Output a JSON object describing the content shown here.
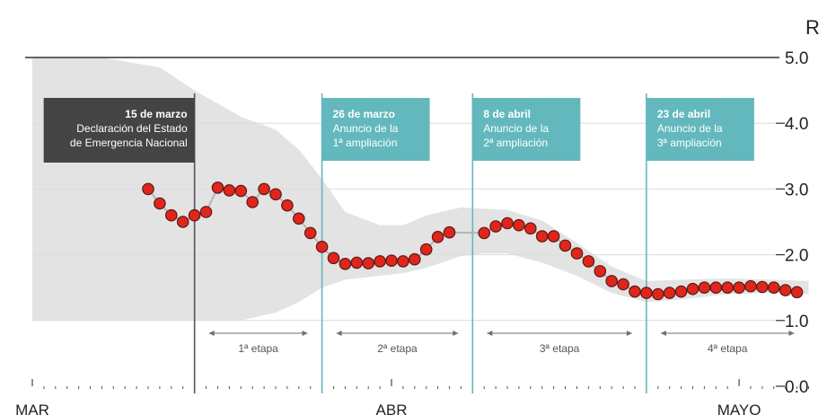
{
  "chart_data": {
    "type": "line",
    "title": "",
    "xlabel": "",
    "ylabel": "R",
    "ylim": [
      0,
      5
    ],
    "yticks": [
      {
        "value": 0,
        "label": "0.0"
      },
      {
        "value": 1,
        "label": "1.0"
      },
      {
        "value": 2,
        "label": "2.0"
      },
      {
        "value": 3,
        "label": "3.0"
      },
      {
        "value": 4,
        "label": "4.0"
      },
      {
        "value": 5,
        "label": "5.0"
      }
    ],
    "x_domain": [
      "2020-03-01",
      "2020-05-04"
    ],
    "months": [
      {
        "label": "MAR",
        "date": "2020-03-01"
      },
      {
        "label": "ABR",
        "date": "2020-04-01"
      },
      {
        "label": "MAYO",
        "date": "2020-05-01"
      }
    ],
    "series": [
      {
        "color": "#e0261c",
        "points": [
          [
            "2020-03-11",
            3.0
          ],
          [
            "2020-03-12",
            2.78
          ],
          [
            "2020-03-13",
            2.6
          ],
          [
            "2020-03-14",
            2.5
          ],
          [
            "2020-03-15",
            2.6
          ],
          [
            "2020-03-16",
            2.65
          ],
          [
            "2020-03-17",
            3.02
          ],
          [
            "2020-03-18",
            2.98
          ],
          [
            "2020-03-19",
            2.97
          ],
          [
            "2020-03-20",
            2.8
          ],
          [
            "2020-03-21",
            3.0
          ],
          [
            "2020-03-22",
            2.92
          ],
          [
            "2020-03-23",
            2.75
          ],
          [
            "2020-03-24",
            2.55
          ],
          [
            "2020-03-25",
            2.33
          ],
          [
            "2020-03-26",
            2.12
          ],
          [
            "2020-03-27",
            1.95
          ],
          [
            "2020-03-28",
            1.86
          ],
          [
            "2020-03-29",
            1.88
          ],
          [
            "2020-03-30",
            1.87
          ],
          [
            "2020-03-31",
            1.9
          ],
          [
            "2020-04-01",
            1.91
          ],
          [
            "2020-04-02",
            1.9
          ],
          [
            "2020-04-03",
            1.93
          ],
          [
            "2020-04-04",
            2.08
          ],
          [
            "2020-04-05",
            2.27
          ],
          [
            "2020-04-06",
            2.34
          ],
          [
            "2020-04-09",
            2.33
          ],
          [
            "2020-04-10",
            2.43
          ],
          [
            "2020-04-11",
            2.48
          ],
          [
            "2020-04-12",
            2.45
          ],
          [
            "2020-04-13",
            2.4
          ],
          [
            "2020-04-14",
            2.28
          ],
          [
            "2020-04-15",
            2.28
          ],
          [
            "2020-04-16",
            2.14
          ],
          [
            "2020-04-17",
            2.02
          ],
          [
            "2020-04-18",
            1.9
          ],
          [
            "2020-04-19",
            1.75
          ],
          [
            "2020-04-20",
            1.6
          ],
          [
            "2020-04-21",
            1.55
          ],
          [
            "2020-04-22",
            1.44
          ],
          [
            "2020-04-23",
            1.42
          ],
          [
            "2020-04-24",
            1.4
          ],
          [
            "2020-04-25",
            1.42
          ],
          [
            "2020-04-26",
            1.44
          ],
          [
            "2020-04-27",
            1.48
          ],
          [
            "2020-04-28",
            1.5
          ],
          [
            "2020-04-29",
            1.5
          ],
          [
            "2020-04-30",
            1.5
          ],
          [
            "2020-05-01",
            1.5
          ],
          [
            "2020-05-02",
            1.52
          ],
          [
            "2020-05-03",
            1.51
          ],
          [
            "2020-05-04",
            1.5
          ],
          [
            "2020-05-05",
            1.46
          ],
          [
            "2020-05-06",
            1.43
          ]
        ]
      }
    ],
    "band": [
      [
        "2020-03-01",
        5.0,
        1.0
      ],
      [
        "2020-03-07",
        5.0,
        1.0
      ],
      [
        "2020-03-12",
        4.85,
        1.0
      ],
      [
        "2020-03-15",
        4.5,
        1.0
      ],
      [
        "2020-03-19",
        4.1,
        1.0
      ],
      [
        "2020-03-22",
        3.9,
        1.12
      ],
      [
        "2020-03-24",
        3.6,
        1.28
      ],
      [
        "2020-03-26",
        3.15,
        1.5
      ],
      [
        "2020-03-28",
        2.65,
        1.62
      ],
      [
        "2020-03-31",
        2.45,
        1.68
      ],
      [
        "2020-04-02",
        2.45,
        1.72
      ],
      [
        "2020-04-04",
        2.6,
        1.8
      ],
      [
        "2020-04-07",
        2.72,
        1.98
      ],
      [
        "2020-04-09",
        2.7,
        2.02
      ],
      [
        "2020-04-11",
        2.68,
        2.02
      ],
      [
        "2020-04-14",
        2.52,
        1.88
      ],
      [
        "2020-04-17",
        2.18,
        1.68
      ],
      [
        "2020-04-20",
        1.82,
        1.42
      ],
      [
        "2020-04-23",
        1.6,
        1.28
      ],
      [
        "2020-04-26",
        1.62,
        1.32
      ],
      [
        "2020-04-30",
        1.64,
        1.4
      ],
      [
        "2020-05-04",
        1.62,
        1.42
      ],
      [
        "2020-05-07",
        1.6,
        1.4
      ]
    ],
    "annotations": [
      {
        "date": "2020-03-15",
        "title": "15 de marzo",
        "lines": [
          "Declaración del Estado",
          "de Emergencia Nacional"
        ],
        "style": "dark",
        "align": "left-of-line"
      },
      {
        "date": "2020-03-26",
        "title": "26 de marzo",
        "lines": [
          "Anuncio de la",
          "1ª ampliación"
        ],
        "style": "teal",
        "align": "right-of-line"
      },
      {
        "date": "2020-04-08",
        "title": "8 de abril",
        "lines": [
          "Anuncio de la",
          "2ª ampliación"
        ],
        "style": "teal",
        "align": "right-of-line"
      },
      {
        "date": "2020-04-23",
        "title": "23 de abril",
        "lines": [
          "Anuncio de la",
          "3ª ampliación"
        ],
        "style": "teal",
        "align": "right-of-line"
      }
    ],
    "stages": [
      {
        "label": "1ª etapa",
        "start": "2020-03-15",
        "end": "2020-03-26"
      },
      {
        "label": "2ª etapa",
        "start": "2020-03-26",
        "end": "2020-04-08"
      },
      {
        "label": "3ª etapa",
        "start": "2020-04-08",
        "end": "2020-04-23"
      },
      {
        "label": "4ª etapa",
        "start": "2020-04-23",
        "end": "2020-05-07"
      }
    ],
    "colors": {
      "point": "#e0261c",
      "line": "#b5b5b5",
      "band": "#e3e3e3",
      "dark": "#444444",
      "teal": "#63b8bd"
    },
    "grid": true
  }
}
